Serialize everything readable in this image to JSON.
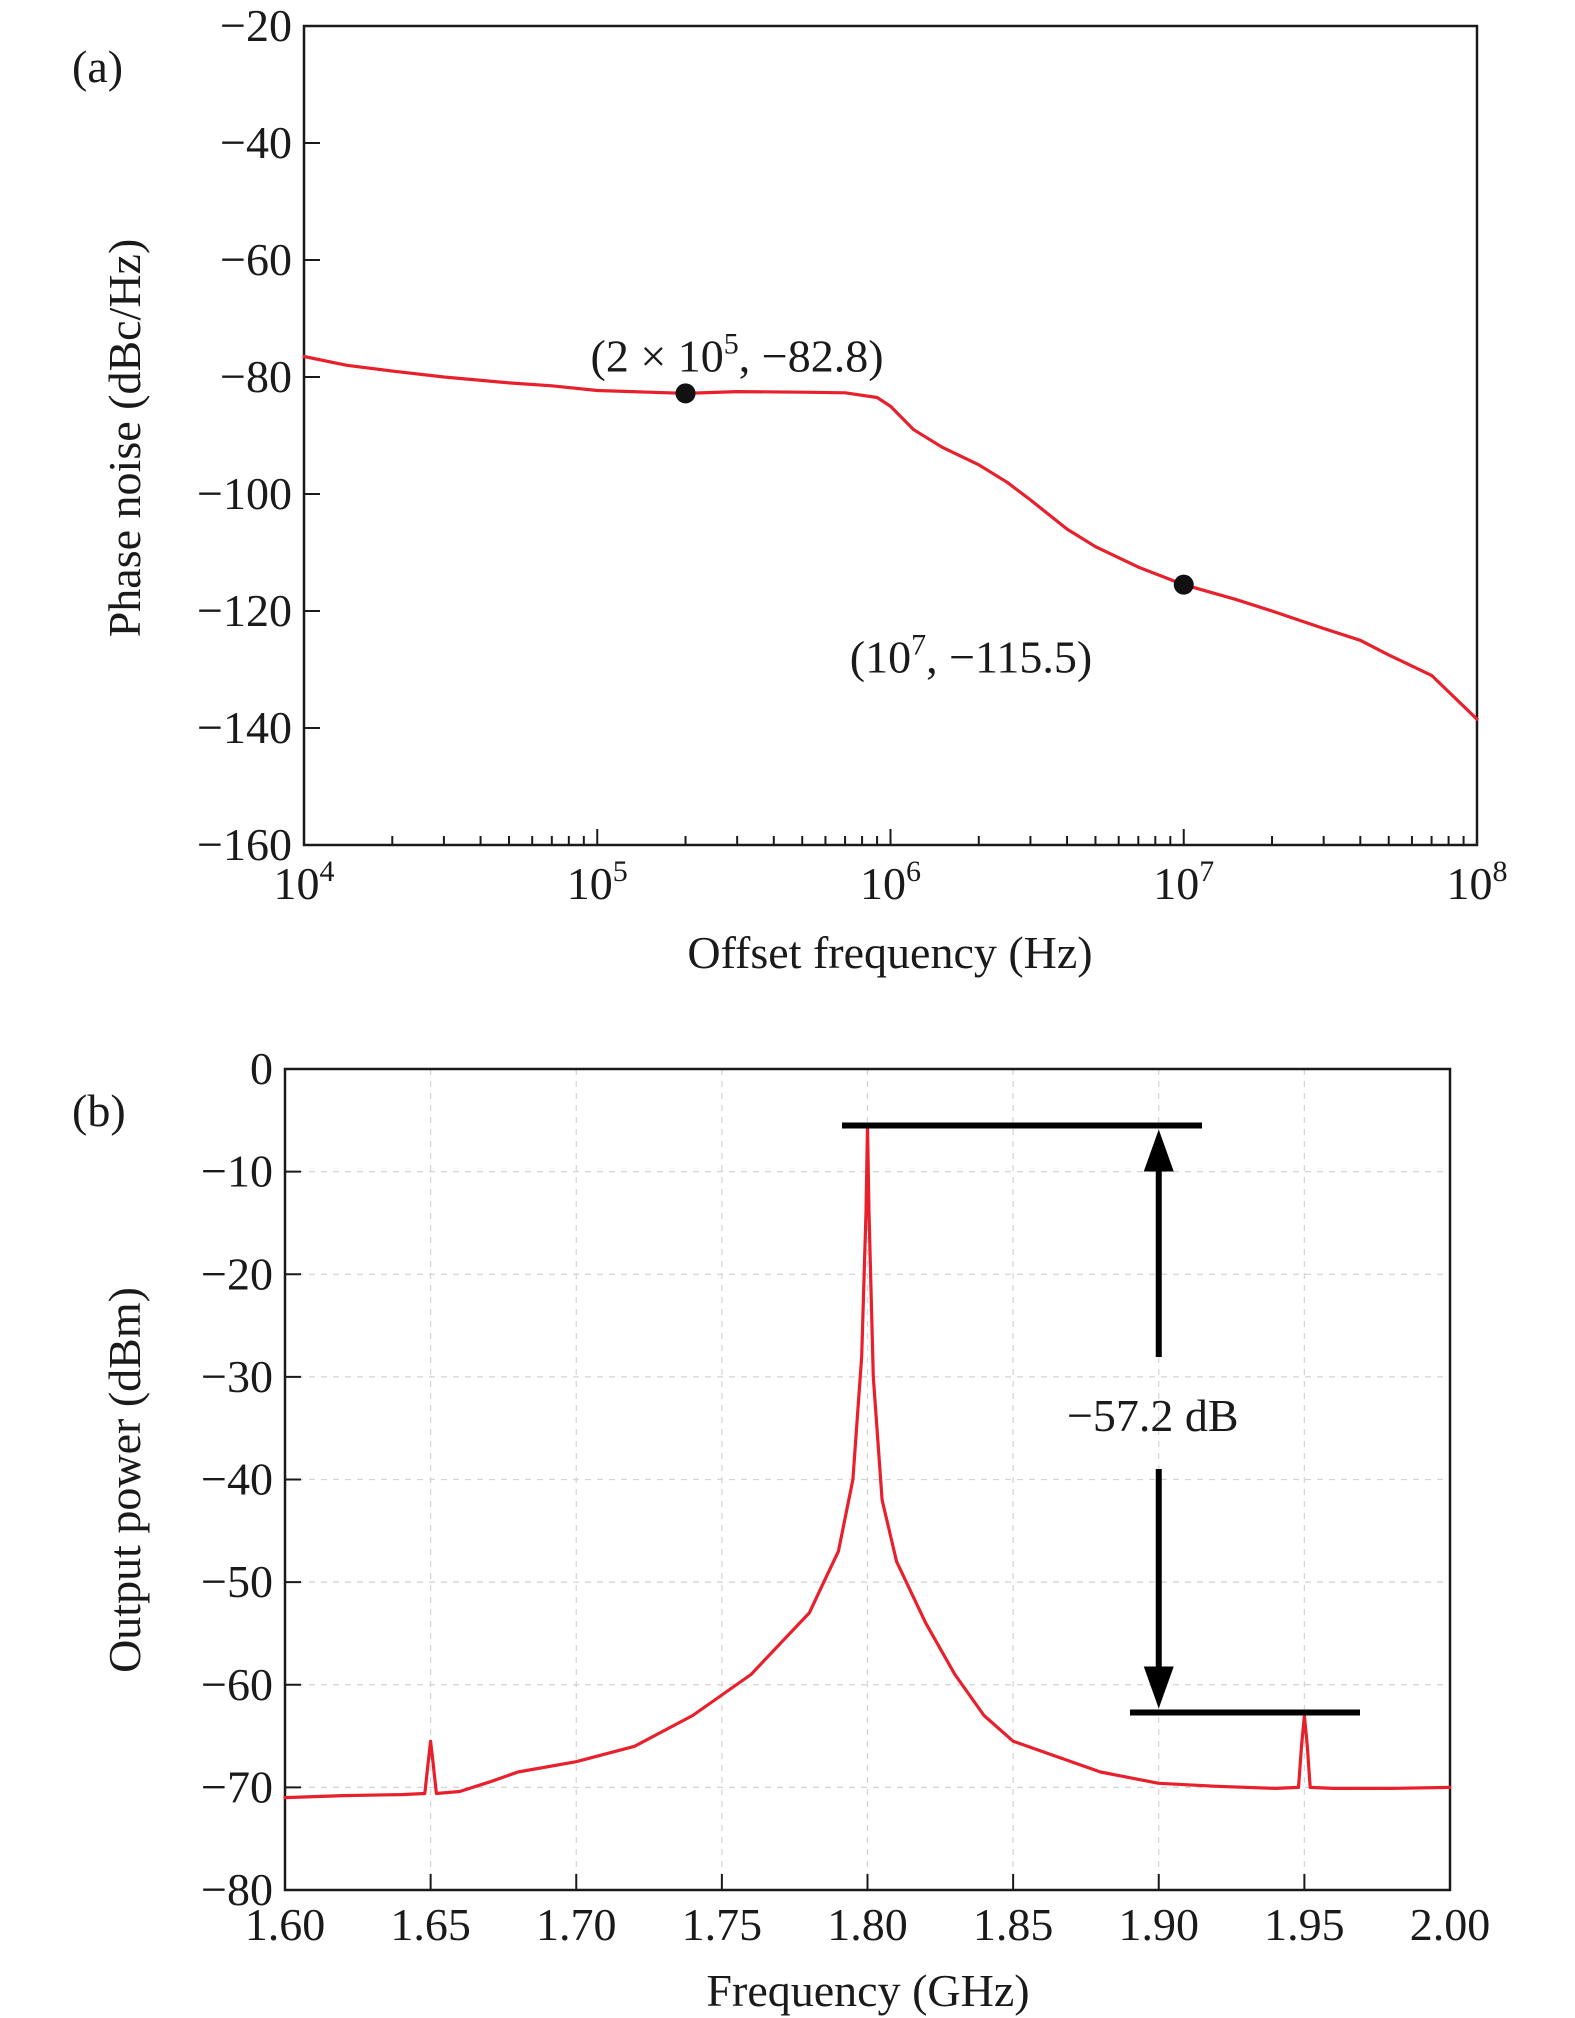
{
  "chart_data": [
    {
      "panel": "(a)",
      "type": "line",
      "xlabel": "Offset frequency (Hz)",
      "ylabel": "Phase noise (dBc/Hz)",
      "xscale": "log",
      "xlim": [
        10000,
        100000000
      ],
      "ylim": [
        -160,
        -20
      ],
      "xticks": [
        {
          "value": 10000,
          "base": "10",
          "exp": "4"
        },
        {
          "value": 100000,
          "base": "10",
          "exp": "5"
        },
        {
          "value": 1000000,
          "base": "10",
          "exp": "6"
        },
        {
          "value": 10000000,
          "base": "10",
          "exp": "7"
        },
        {
          "value": 100000000,
          "base": "10",
          "exp": "8"
        }
      ],
      "yticks": [
        {
          "value": -20,
          "label": "−20"
        },
        {
          "value": -40,
          "label": "−40"
        },
        {
          "value": -60,
          "label": "−60"
        },
        {
          "value": -80,
          "label": "−80"
        },
        {
          "value": -100,
          "label": "−100"
        },
        {
          "value": -120,
          "label": "−120"
        },
        {
          "value": -140,
          "label": "−140"
        },
        {
          "value": -160,
          "label": "−160"
        }
      ],
      "grid": false,
      "series": [
        {
          "color": "#e8202c",
          "x": [
            10000,
            14000,
            20000,
            30000,
            50000,
            70000,
            100000,
            150000,
            200000,
            300000,
            500000,
            700000,
            900000,
            1000000,
            1200000,
            1500000,
            2000000,
            2500000,
            3000000,
            4000000,
            5000000,
            7000000,
            10000000,
            15000000,
            20000000,
            30000000,
            40000000,
            50000000,
            70000000,
            100000000
          ],
          "y": [
            -76.5,
            -78,
            -79,
            -80,
            -81,
            -81.5,
            -82.3,
            -82.6,
            -82.8,
            -82.5,
            -82.6,
            -82.7,
            -83.5,
            -85,
            -89,
            -92,
            -95,
            -98,
            -101,
            -106,
            -109,
            -112.5,
            -115.5,
            -118,
            -120,
            -123,
            -125,
            -127.5,
            -131,
            -138.5
          ]
        }
      ],
      "annotations": [
        {
          "x": 200000,
          "y": -82.8,
          "text_before": "(2 × 10",
          "sup": "5",
          "text_after": ", −82.8)"
        },
        {
          "x": 10000000,
          "y": -115.5,
          "text_before": "(10",
          "sup": "7",
          "text_after": ", −115.5)"
        }
      ]
    },
    {
      "panel": "(b)",
      "type": "line",
      "xlabel": "Frequency (GHz)",
      "ylabel": "Output power (dBm)",
      "xlim": [
        1.6,
        2.0
      ],
      "ylim": [
        -80,
        0
      ],
      "xticks": [
        {
          "value": 1.6,
          "label": "1.60"
        },
        {
          "value": 1.65,
          "label": "1.65"
        },
        {
          "value": 1.7,
          "label": "1.70"
        },
        {
          "value": 1.75,
          "label": "1.75"
        },
        {
          "value": 1.8,
          "label": "1.80"
        },
        {
          "value": 1.85,
          "label": "1.85"
        },
        {
          "value": 1.9,
          "label": "1.90"
        },
        {
          "value": 1.95,
          "label": "1.95"
        },
        {
          "value": 2.0,
          "label": "2.00"
        }
      ],
      "yticks": [
        {
          "value": 0,
          "label": "0"
        },
        {
          "value": -10,
          "label": "−10"
        },
        {
          "value": -20,
          "label": "−20"
        },
        {
          "value": -30,
          "label": "−30"
        },
        {
          "value": -40,
          "label": "−40"
        },
        {
          "value": -50,
          "label": "−50"
        },
        {
          "value": -60,
          "label": "−60"
        },
        {
          "value": -70,
          "label": "−70"
        },
        {
          "value": -80,
          "label": "−80"
        }
      ],
      "grid": true,
      "series": [
        {
          "color": "#e8202c",
          "x": [
            1.6,
            1.62,
            1.64,
            1.648,
            1.649,
            1.65,
            1.651,
            1.652,
            1.66,
            1.67,
            1.68,
            1.7,
            1.72,
            1.74,
            1.76,
            1.77,
            1.78,
            1.785,
            1.79,
            1.795,
            1.798,
            1.7995,
            1.8,
            1.8005,
            1.802,
            1.805,
            1.81,
            1.815,
            1.82,
            1.83,
            1.84,
            1.85,
            1.86,
            1.88,
            1.9,
            1.92,
            1.94,
            1.948,
            1.949,
            1.95,
            1.951,
            1.952,
            1.96,
            1.98,
            2.0
          ],
          "y": [
            -71,
            -70.8,
            -70.7,
            -70.6,
            -68,
            -65.5,
            -68,
            -70.6,
            -70.4,
            -69.5,
            -68.5,
            -67.5,
            -66,
            -63,
            -59,
            -56,
            -53,
            -50,
            -47,
            -40,
            -28,
            -14,
            -5.5,
            -14,
            -30,
            -42,
            -48,
            -51,
            -54,
            -59,
            -63,
            -65.5,
            -66.5,
            -68.5,
            -69.6,
            -69.9,
            -70.1,
            -70,
            -66,
            -63,
            -66,
            -70,
            -70.1,
            -70.1,
            -70
          ]
        }
      ],
      "annotations": [
        {
          "text": "−57.2 dB",
          "top_level": -5.5,
          "bottom_level": -62.7,
          "arrow_x": 1.9
        }
      ]
    }
  ]
}
